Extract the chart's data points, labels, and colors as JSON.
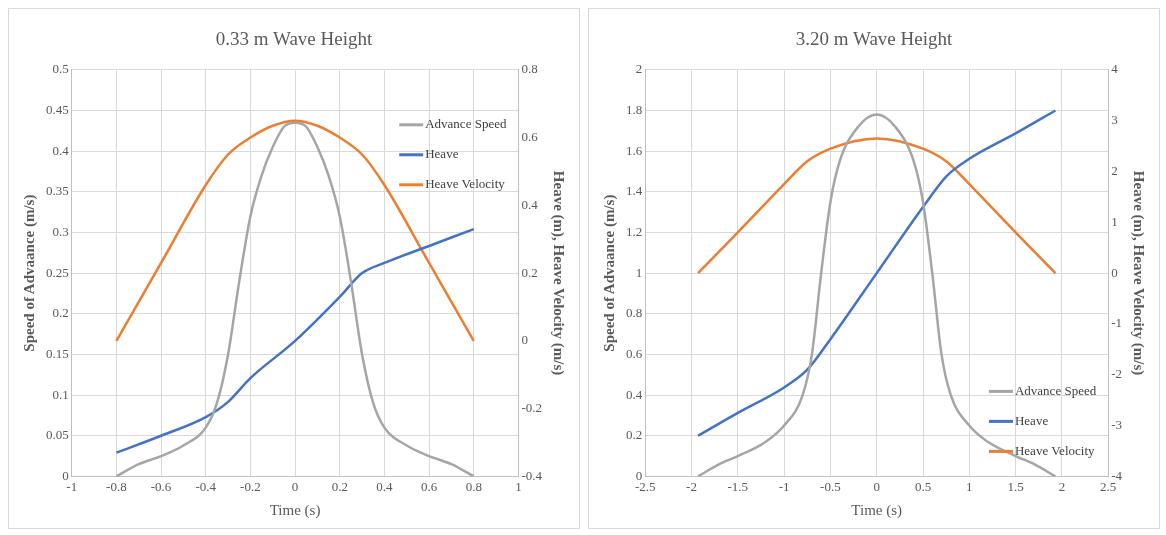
{
  "chart_data": [
    {
      "type": "line",
      "title": "0.33 m Wave Height",
      "xlabel": "Time (s)",
      "ylabel": "Speed of Advaance (m/s)",
      "y2label": "Heave (m), Heave Velocity (m/s)",
      "xlim": [
        -1,
        1
      ],
      "xticks": [
        -1,
        -0.8,
        -0.6,
        -0.4,
        -0.2,
        0,
        0.2,
        0.4,
        0.6,
        0.8,
        1
      ],
      "ylim": [
        0,
        0.5
      ],
      "yticks": [
        0,
        0.05,
        0.1,
        0.15,
        0.2,
        0.25,
        0.3,
        0.35,
        0.4,
        0.45,
        0.5
      ],
      "y2lim": [
        -0.4,
        0.8
      ],
      "y2ticks": [
        -0.4,
        -0.2,
        0,
        0.2,
        0.4,
        0.6,
        0.8
      ],
      "grid": true,
      "legend": "top right",
      "marker": "none",
      "line_style": "solid",
      "series": [
        {
          "name": "Advance Speed",
          "color": "#a5a5a5",
          "x": [
            -0.8,
            -0.7,
            -0.6,
            -0.5,
            -0.4,
            -0.35,
            -0.3,
            -0.25,
            -0.2,
            -0.15,
            -0.1,
            -0.05,
            0,
            0.05,
            0.1,
            0.15,
            0.2,
            0.25,
            0.3,
            0.35,
            0.4,
            0.5,
            0.6,
            0.7,
            0.8
          ],
          "values": [
            0,
            0.015,
            0.025,
            0.038,
            0.06,
            0.09,
            0.15,
            0.24,
            0.32,
            0.37,
            0.405,
            0.43,
            0.435,
            0.43,
            0.405,
            0.37,
            0.32,
            0.24,
            0.15,
            0.09,
            0.06,
            0.038,
            0.025,
            0.015,
            0
          ]
        },
        {
          "name": "Heave",
          "color": "#4472c4",
          "axis": "y2",
          "x": [
            -0.8,
            -0.6,
            -0.4,
            -0.3,
            -0.2,
            0,
            0.2,
            0.3,
            0.4,
            0.6,
            0.8
          ],
          "values": [
            -0.33,
            -0.28,
            -0.225,
            -0.18,
            -0.11,
            0,
            0.13,
            0.2,
            0.23,
            0.28,
            0.33
          ]
        },
        {
          "name": "Heave Velocity",
          "color": "#ed7d31",
          "axis": "y2",
          "x": [
            -0.8,
            -0.6,
            -0.4,
            -0.3,
            -0.2,
            -0.1,
            0,
            0.1,
            0.2,
            0.3,
            0.4,
            0.6,
            0.8
          ],
          "values": [
            0,
            0.23,
            0.46,
            0.55,
            0.6,
            0.635,
            0.65,
            0.635,
            0.6,
            0.55,
            0.46,
            0.23,
            0
          ]
        }
      ]
    },
    {
      "type": "line",
      "title": "3.20 m Wave Height",
      "xlabel": "Time (s)",
      "ylabel": "Speed of Advaance (m/s)",
      "y2label": "Heave (m), Heave Velocity (m/s)",
      "xlim": [
        -2.5,
        2.5
      ],
      "xticks": [
        -2.5,
        -2,
        -1.5,
        -1,
        -0.5,
        0,
        0.5,
        1,
        1.5,
        2,
        2.5
      ],
      "ylim": [
        0,
        2
      ],
      "yticks": [
        0,
        0.2,
        0.4,
        0.6,
        0.8,
        1,
        1.2,
        1.4,
        1.6,
        1.8,
        2
      ],
      "y2lim": [
        -4,
        4
      ],
      "y2ticks": [
        -4,
        -3,
        -2,
        -1,
        0,
        1,
        2,
        3,
        4
      ],
      "grid": true,
      "legend": "bottom right",
      "marker": "none",
      "line_style": "solid",
      "series": [
        {
          "name": "Advance Speed",
          "color": "#a5a5a5",
          "x": [
            -1.93,
            -1.7,
            -1.5,
            -1.2,
            -1,
            -0.8,
            -0.7,
            -0.6,
            -0.5,
            -0.4,
            -0.2,
            0,
            0.2,
            0.4,
            0.5,
            0.6,
            0.7,
            0.8,
            1,
            1.2,
            1.5,
            1.7,
            1.93
          ],
          "values": [
            0,
            0.06,
            0.1,
            0.17,
            0.25,
            0.4,
            0.6,
            1,
            1.35,
            1.55,
            1.72,
            1.78,
            1.72,
            1.55,
            1.35,
            1,
            0.6,
            0.4,
            0.25,
            0.17,
            0.1,
            0.06,
            0
          ]
        },
        {
          "name": "Heave",
          "color": "#4472c4",
          "axis": "y2",
          "x": [
            -1.93,
            -1.5,
            -1,
            -0.75,
            -0.5,
            0,
            0.5,
            0.75,
            1,
            1.5,
            1.93
          ],
          "values": [
            -3.2,
            -2.75,
            -2.25,
            -1.9,
            -1.3,
            0,
            1.3,
            1.9,
            2.25,
            2.75,
            3.2
          ]
        },
        {
          "name": "Heave Velocity",
          "color": "#ed7d31",
          "axis": "y2",
          "x": [
            -1.93,
            -1.5,
            -1,
            -0.75,
            -0.5,
            0,
            0.5,
            0.75,
            1,
            1.5,
            1.93
          ],
          "values": [
            0,
            0.8,
            1.75,
            2.2,
            2.45,
            2.65,
            2.45,
            2.2,
            1.75,
            0.8,
            0
          ]
        }
      ]
    }
  ]
}
